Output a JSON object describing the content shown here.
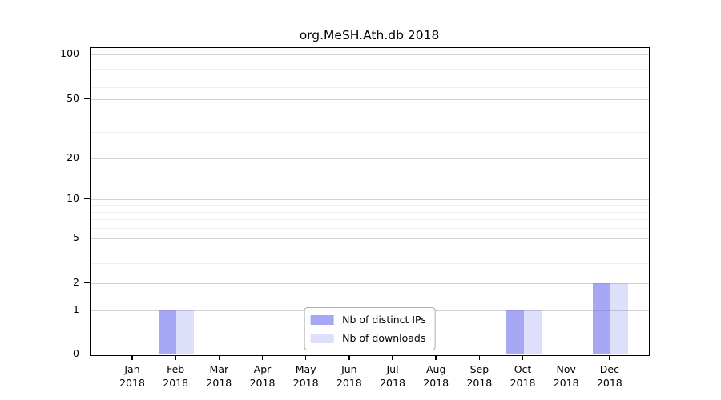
{
  "chart_data": {
    "type": "bar",
    "title": "org.MeSH.Ath.db 2018",
    "categories": [
      "Jan 2018",
      "Feb 2018",
      "Mar 2018",
      "Apr 2018",
      "May 2018",
      "Jun 2018",
      "Jul 2018",
      "Aug 2018",
      "Sep 2018",
      "Oct 2018",
      "Nov 2018",
      "Dec 2018"
    ],
    "series": [
      {
        "name": "Nb of distinct IPs",
        "color": "rgba(107,110,238,0.6)",
        "values": [
          0,
          1,
          0,
          0,
          0,
          0,
          0,
          0,
          0,
          1,
          0,
          2
        ]
      },
      {
        "name": "Nb of downloads",
        "color": "rgba(107,110,238,0.22)",
        "values": [
          0,
          1,
          0,
          0,
          0,
          0,
          0,
          0,
          0,
          1,
          0,
          2
        ]
      }
    ],
    "yscale": "symlog",
    "yticks": [
      0,
      1,
      2,
      5,
      10,
      20,
      50,
      100
    ],
    "minor_yticks": [
      3,
      4,
      6,
      7,
      8,
      9,
      30,
      40,
      60,
      70,
      80,
      90
    ],
    "ylim": [
      0,
      112
    ],
    "grid": true,
    "legend_position": "lower center"
  },
  "colors": {
    "background": "#ffffff",
    "axis": "#000000",
    "major_grid": "#d2d2d2",
    "minor_grid": "#efefef",
    "legend_border": "#b0b0b0",
    "text": "#000000"
  }
}
